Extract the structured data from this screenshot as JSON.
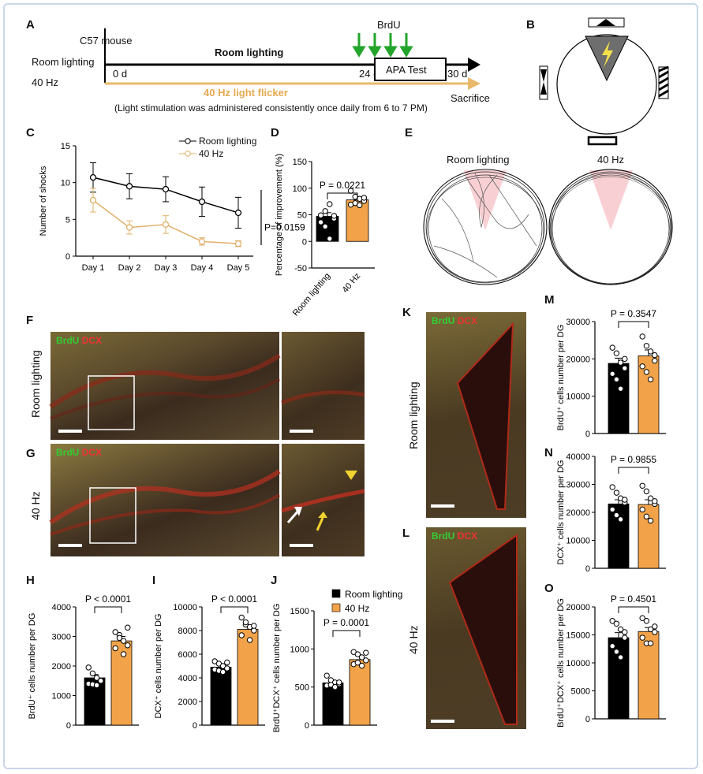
{
  "panel_letters": {
    "A": "A",
    "B": "B",
    "C": "C",
    "D": "D",
    "E": "E",
    "F": "F",
    "G": "G",
    "H": "H",
    "I": "I",
    "J": "J",
    "K": "K",
    "L": "L",
    "M": "M",
    "N": "N",
    "O": "O"
  },
  "panelA": {
    "mouse": "C57 mouse",
    "room_label": "Room lighting",
    "hz_label": "40 Hz",
    "room_bar_title": "Room lighting",
    "day0": "0 d",
    "day24": "24 d",
    "day30": "30 d",
    "apa": "APA Test",
    "brdu": "BrdU",
    "flicker": "40 Hz light flicker",
    "sacrifice": "Sacrifice",
    "note": "(Light stimulation was administered consistently once daily from 6 to 7 PM)"
  },
  "panelE": {
    "room": "Room lighting",
    "hz": "40 Hz"
  },
  "micrograph": {
    "brdu": "BrdU",
    "dcx": "DCX",
    "row_room": "Room lighting",
    "row_hz": "40 Hz"
  },
  "colors": {
    "room": "#000000",
    "hz": "#f2a34a",
    "hz_line": "#e0b06a",
    "green": "#27a52b",
    "shock_zone": "#6e6e6e",
    "zone_pink": "#f8d0d4"
  },
  "chart_data": [
    {
      "id": "C",
      "type": "line",
      "categories": [
        "Day 1",
        "Day 2",
        "Day 3",
        "Day 4",
        "Day 5"
      ],
      "series": [
        {
          "name": "Room lighting",
          "values": [
            10.7,
            9.5,
            9.1,
            7.4,
            5.9
          ],
          "err": [
            2.0,
            1.7,
            1.7,
            2.0,
            2.1
          ]
        },
        {
          "name": "40 Hz",
          "values": [
            7.6,
            3.9,
            4.3,
            2.0,
            1.7
          ],
          "err": [
            1.6,
            0.9,
            1.2,
            0.5,
            0.4
          ]
        }
      ],
      "ylabel": "Number of shocks",
      "ylim": [
        0,
        15
      ],
      "yticks": [
        "0",
        "5",
        "10",
        "15"
      ],
      "annotation": "P=0.0159"
    },
    {
      "id": "D",
      "type": "bar",
      "categories": [
        "Room lighting",
        "40 Hz"
      ],
      "values": [
        47,
        78
      ],
      "err": [
        7,
        5
      ],
      "points": [
        [
          49,
          57,
          70,
          43,
          36,
          28,
          5,
          48
        ],
        [
          95,
          84,
          80,
          76,
          69,
          72,
          68,
          82
        ]
      ],
      "ylabel": "Percentage of improvement (%)",
      "ylim": [
        -50,
        150
      ],
      "yticks": [
        "-50",
        "0",
        "50",
        "100",
        "150"
      ],
      "annotation": "P = 0.0221"
    },
    {
      "id": "H",
      "type": "bar",
      "categories": [
        "Room lighting",
        "40 Hz"
      ],
      "values": [
        1600,
        2850
      ],
      "err": [
        110,
        150
      ],
      "points": [
        [
          1950,
          1750,
          1600,
          1500,
          1400,
          1380,
          1350,
          1500
        ],
        [
          3150,
          3050,
          2850,
          2700,
          2600,
          2950,
          2400,
          3300
        ]
      ],
      "ylabel": "BrdU⁺ cells number per DG",
      "ylim": [
        0,
        4000
      ],
      "yticks": [
        "0",
        "1000",
        "2000",
        "3000",
        "4000"
      ],
      "annotation": "P < 0.0001"
    },
    {
      "id": "I",
      "type": "bar",
      "categories": [
        "Room lighting",
        "40 Hz"
      ],
      "values": [
        4900,
        8100
      ],
      "err": [
        200,
        330
      ],
      "points": [
        [
          5400,
          5200,
          5000,
          4800,
          4700,
          4600,
          4500,
          5300
        ],
        [
          9100,
          8500,
          8300,
          8000,
          7600,
          8700,
          7200,
          8400
        ]
      ],
      "ylabel": "DCX⁺ cells number per DG",
      "ylim": [
        0,
        10000
      ],
      "yticks": [
        "0",
        "2000",
        "4000",
        "6000",
        "8000",
        "10000"
      ],
      "annotation": "P < 0.0001"
    },
    {
      "id": "J",
      "type": "bar",
      "categories": [
        "Room lighting",
        "40 Hz"
      ],
      "values": [
        555,
        860
      ],
      "err": [
        25,
        50
      ],
      "points": [
        [
          650,
          590,
          560,
          540,
          520,
          530,
          500,
          560
        ],
        [
          960,
          930,
          890,
          850,
          800,
          820,
          780,
          950
        ]
      ],
      "ylabel": "BrdU⁺DCX⁺ cells number per DG",
      "ylim": [
        0,
        1500
      ],
      "yticks": [
        "0",
        "500",
        "1000",
        "1500"
      ],
      "annotation": "P = 0.0001",
      "legend": [
        "Room lighting",
        "40 Hz"
      ]
    },
    {
      "id": "M",
      "type": "bar",
      "categories": [
        "Room lighting",
        "40 Hz"
      ],
      "values": [
        18800,
        20800
      ],
      "err": [
        1400,
        1600
      ],
      "points": [
        [
          23000,
          21500,
          19000,
          17500,
          16000,
          14500,
          12000,
          20000
        ],
        [
          26000,
          23500,
          22000,
          19500,
          18000,
          16500,
          14500,
          21000
        ]
      ],
      "ylabel": "BrdU⁺ cells number per DG",
      "ylim": [
        0,
        30000
      ],
      "yticks": [
        "0",
        "10000",
        "20000",
        "30000"
      ],
      "annotation": "P = 0.3547"
    },
    {
      "id": "N",
      "type": "bar",
      "categories": [
        "Room lighting",
        "40 Hz"
      ],
      "values": [
        23000,
        22800
      ],
      "err": [
        1500,
        1700
      ],
      "points": [
        [
          29000,
          27000,
          25000,
          23500,
          21000,
          19000,
          17500,
          24500
        ],
        [
          29500,
          27500,
          25000,
          23000,
          21000,
          18500,
          17000,
          24000
        ]
      ],
      "ylabel": "DCX⁺ cells number per DG",
      "ylim": [
        0,
        40000
      ],
      "yticks": [
        "0",
        "10000",
        "20000",
        "30000",
        "40000"
      ],
      "annotation": "P = 0.9855"
    },
    {
      "id": "O",
      "type": "bar",
      "categories": [
        "Room lighting",
        "40 Hz"
      ],
      "values": [
        14500,
        15600
      ],
      "err": [
        900,
        700
      ],
      "points": [
        [
          17500,
          17000,
          16000,
          14500,
          13000,
          12000,
          11000,
          15500
        ],
        [
          18000,
          17500,
          16000,
          15500,
          14500,
          13500,
          13500,
          16500
        ]
      ],
      "ylabel": "BrdU⁺DCX⁺ cells number per DG",
      "ylim": [
        0,
        20000
      ],
      "yticks": [
        "0",
        "5000",
        "10000",
        "15000",
        "20000"
      ],
      "annotation": "P = 0.4501"
    }
  ]
}
